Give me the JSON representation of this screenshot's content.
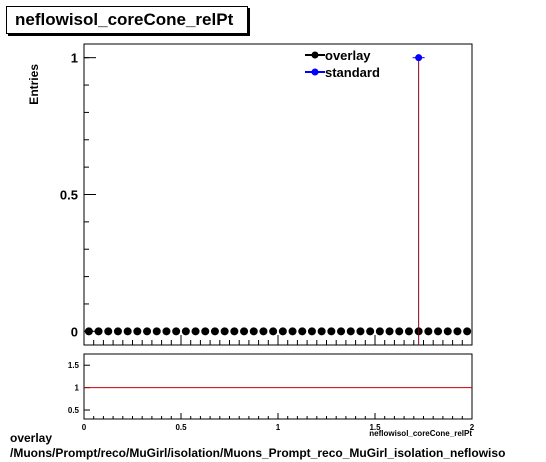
{
  "title": "neflowisol_coreCone_relPt",
  "footer": {
    "line1": "overlay",
    "line2": "/Muons/Prompt/reco/MuGirl/isolation/Muons_Prompt_reco_MuGirl_isolation_neflowiso"
  },
  "chart_data": [
    {
      "type": "scatter",
      "title": "neflowisol_coreCone_relPt",
      "ylabel": "Entries",
      "xlabel": "",
      "xlim": [
        0,
        2
      ],
      "ylim": [
        -0.05,
        1.05
      ],
      "y_ticks": [
        "0",
        "0.5",
        "1"
      ],
      "y_tick_values": [
        0,
        0.5,
        1
      ],
      "legend": {
        "placement": "top-right",
        "entries": [
          "overlay",
          "standard"
        ]
      },
      "series": [
        {
          "name": "overlay",
          "color": "#000000",
          "x": [
            0.025,
            0.075,
            0.125,
            0.175,
            0.225,
            0.275,
            0.325,
            0.375,
            0.425,
            0.475,
            0.525,
            0.575,
            0.625,
            0.675,
            0.725,
            0.775,
            0.825,
            0.875,
            0.925,
            0.975,
            1.025,
            1.075,
            1.125,
            1.175,
            1.225,
            1.275,
            1.325,
            1.375,
            1.425,
            1.475,
            1.525,
            1.575,
            1.625,
            1.675,
            1.725,
            1.775,
            1.825,
            1.875,
            1.925,
            1.975
          ],
          "y": [
            0,
            0,
            0,
            0,
            0,
            0,
            0,
            0,
            0,
            0,
            0,
            0,
            0,
            0,
            0,
            0,
            0,
            0,
            0,
            0,
            0,
            0,
            0,
            0,
            0,
            0,
            0,
            0,
            0,
            0,
            0,
            0,
            0,
            0,
            0,
            0,
            0,
            0,
            0,
            0
          ]
        },
        {
          "name": "standard",
          "color": "#0000ff",
          "x": [
            1.725
          ],
          "y": [
            1
          ],
          "stem_color": "#800020"
        }
      ]
    },
    {
      "type": "line",
      "xlim": [
        0,
        2
      ],
      "ylim": [
        0.3,
        1.75
      ],
      "x_ticks": [
        "0",
        "0.5",
        "1",
        "1.5",
        "2"
      ],
      "x_tick_values": [
        0,
        0.5,
        1,
        1.5,
        2
      ],
      "y_ticks": [
        "0.5",
        "1",
        "1.5"
      ],
      "y_tick_values": [
        0.5,
        1,
        1.5
      ],
      "xlabel": "neflowisol_coreCone_relPt",
      "series": [
        {
          "name": "",
          "color": "#cc0000",
          "x": [
            0,
            2
          ],
          "y": [
            1,
            1
          ]
        }
      ]
    }
  ]
}
